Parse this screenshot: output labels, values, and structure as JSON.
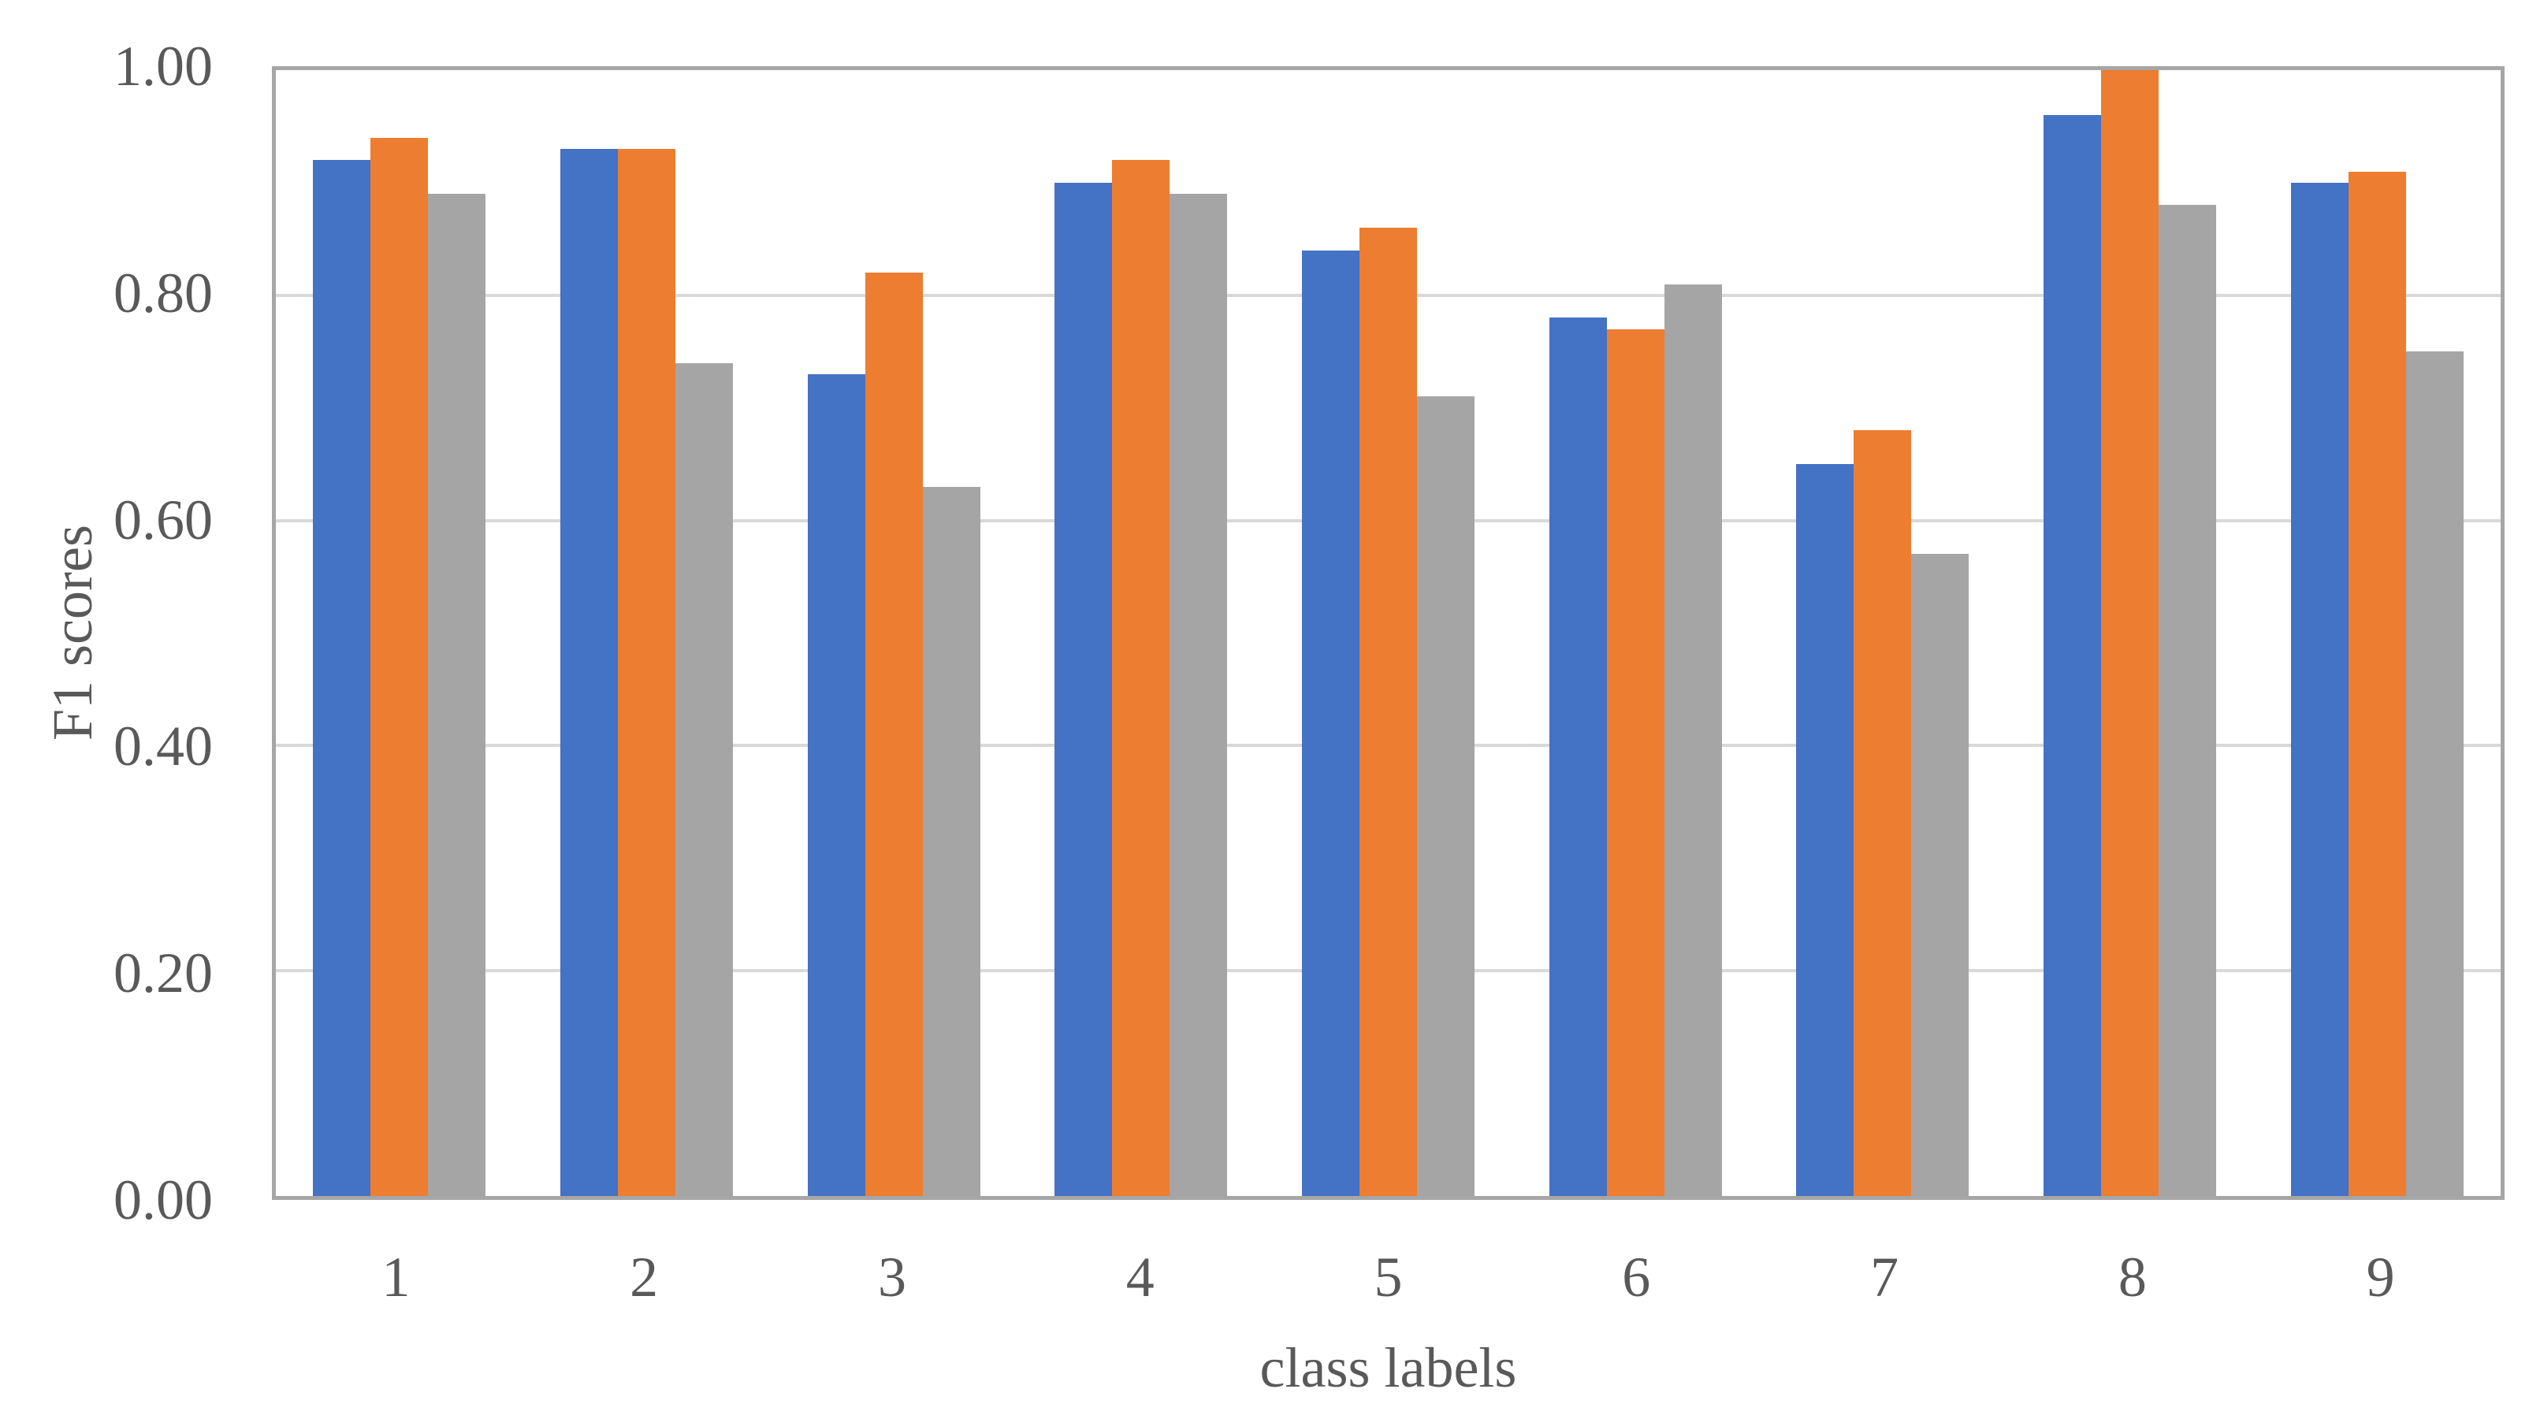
{
  "chart_data": {
    "type": "bar",
    "title": "",
    "categories": [
      "1",
      "2",
      "3",
      "4",
      "5",
      "6",
      "7",
      "8",
      "9"
    ],
    "series": [
      {
        "name": "blue",
        "color": "#4472C4",
        "values": [
          0.92,
          0.93,
          0.73,
          0.9,
          0.84,
          0.78,
          0.65,
          0.96,
          0.9
        ]
      },
      {
        "name": "orange",
        "color": "#ED7D31",
        "values": [
          0.94,
          0.93,
          0.82,
          0.92,
          0.86,
          0.77,
          0.68,
          1.0,
          0.91
        ]
      },
      {
        "name": "gray",
        "color": "#A5A5A5",
        "values": [
          0.89,
          0.74,
          0.63,
          0.89,
          0.71,
          0.81,
          0.57,
          0.88,
          0.75
        ]
      }
    ],
    "xlabel": "class labels",
    "ylabel": "F1 scores",
    "ylim": [
      0,
      1
    ],
    "ytick_labels": [
      "0.00",
      "0.20",
      "0.40",
      "0.60",
      "0.80",
      "1.00"
    ],
    "grid": true,
    "legend": "none"
  },
  "style": {
    "background": "#FFFFFF",
    "plot_border_color": "#A6A6A6",
    "gridline_color": "#D9D9D9",
    "text_color": "#595959"
  }
}
